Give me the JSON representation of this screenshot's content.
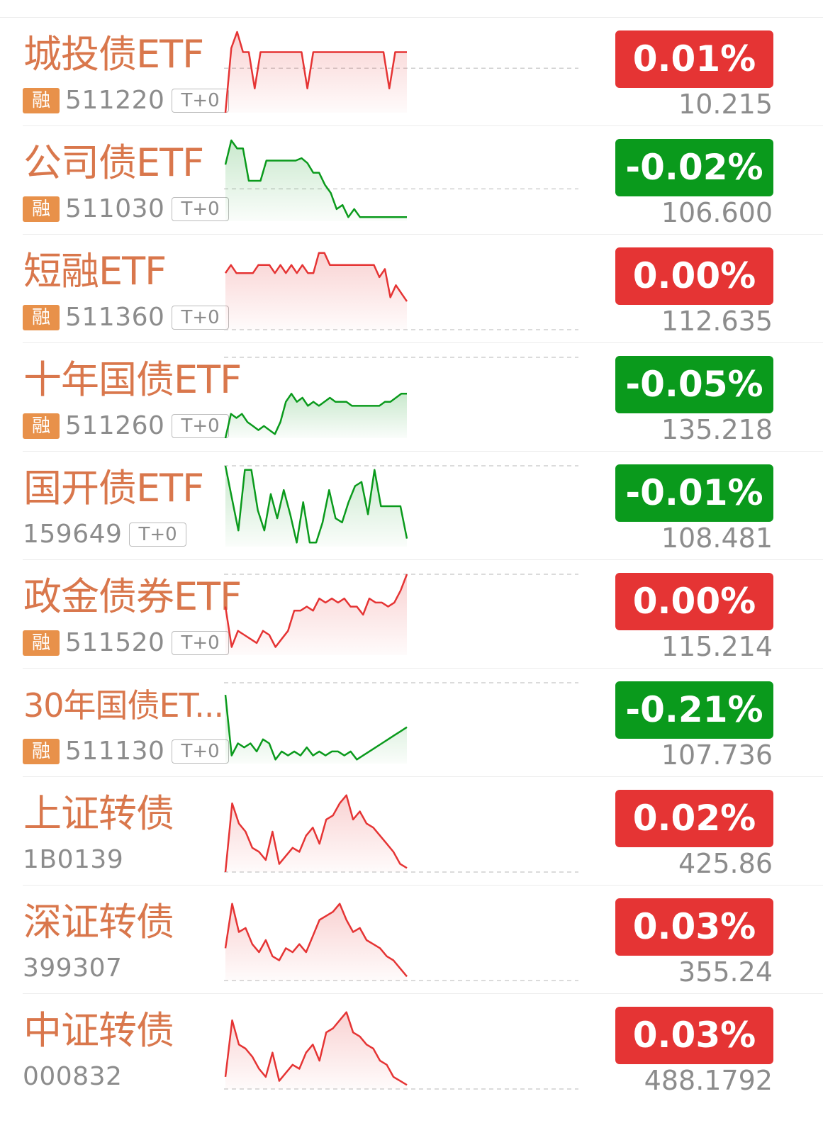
{
  "colors": {
    "up": "#e53434",
    "down": "#0a9a1c",
    "name": "#d9774c",
    "muted": "#8c8c8c",
    "badge_rong": "#e8914a"
  },
  "rows": [
    {
      "name": "城投债ETF",
      "rong": "融",
      "code": "511220",
      "tag": "T+0",
      "change": "0.01%",
      "price": "10.215",
      "trend": "up",
      "ref": 0.55,
      "spark": [
        0,
        0.8,
        1,
        0.75,
        0.75,
        0.3,
        0.75,
        0.75,
        0.75,
        0.75,
        0.75,
        0.75,
        0.75,
        0.75,
        0.3,
        0.75,
        0.75,
        0.75,
        0.75,
        0.75,
        0.75,
        0.75,
        0.75,
        0.75,
        0.75,
        0.75,
        0.75,
        0.75,
        0.3,
        0.75,
        0.75,
        0.75
      ]
    },
    {
      "name": "公司债ETF",
      "rong": "融",
      "code": "511030",
      "tag": "T+0",
      "change": "-0.02%",
      "price": "106.600",
      "trend": "down",
      "ref": 0.4,
      "spark": [
        0.7,
        1,
        0.9,
        0.9,
        0.5,
        0.5,
        0.5,
        0.75,
        0.75,
        0.75,
        0.75,
        0.75,
        0.75,
        0.78,
        0.72,
        0.6,
        0.6,
        0.45,
        0.35,
        0.15,
        0.2,
        0.05,
        0.15,
        0.05,
        0.05,
        0.05,
        0.05,
        0.05,
        0.05,
        0.05,
        0.05,
        0.05
      ]
    },
    {
      "name": "短融ETF",
      "rong": "融",
      "code": "511360",
      "tag": "T+0",
      "change": "0.00%",
      "price": "112.635",
      "trend": "up",
      "ref": 0,
      "spark": [
        0.7,
        0.8,
        0.7,
        0.7,
        0.7,
        0.7,
        0.8,
        0.8,
        0.8,
        0.7,
        0.8,
        0.7,
        0.8,
        0.7,
        0.8,
        0.7,
        0.7,
        0.95,
        0.95,
        0.8,
        0.8,
        0.8,
        0.8,
        0.8,
        0.8,
        0.8,
        0.8,
        0.8,
        0.65,
        0.75,
        0.4,
        0.55,
        0.45,
        0.35
      ]
    },
    {
      "name": "十年国债ETF",
      "rong": "融",
      "code": "511260",
      "tag": "T+0",
      "change": "-0.05%",
      "price": "135.218",
      "trend": "down",
      "ref": 1,
      "spark": [
        0,
        0.3,
        0.25,
        0.3,
        0.2,
        0.15,
        0.1,
        0.15,
        0.1,
        0.05,
        0.2,
        0.45,
        0.55,
        0.45,
        0.5,
        0.4,
        0.45,
        0.4,
        0.45,
        0.5,
        0.45,
        0.45,
        0.45,
        0.4,
        0.4,
        0.4,
        0.4,
        0.4,
        0.4,
        0.45,
        0.45,
        0.5,
        0.55,
        0.55
      ]
    },
    {
      "name": "国开债ETF",
      "rong": "",
      "code": "159649",
      "tag": "T+0",
      "change": "-0.01%",
      "price": "108.481",
      "trend": "down",
      "ref": 1,
      "spark": [
        1,
        0.6,
        0.2,
        0.95,
        0.95,
        0.45,
        0.2,
        0.65,
        0.35,
        0.7,
        0.4,
        0.05,
        0.55,
        0.05,
        0.05,
        0.3,
        0.7,
        0.35,
        0.3,
        0.55,
        0.75,
        0.8,
        0.4,
        0.95,
        0.5,
        0.5,
        0.5,
        0.5,
        0.1
      ]
    },
    {
      "name": "政金债券ETF",
      "rong": "融",
      "code": "511520",
      "tag": "T+0",
      "change": "0.00%",
      "price": "115.214",
      "trend": "up",
      "ref": 1,
      "spark": [
        0.6,
        0.1,
        0.3,
        0.25,
        0.2,
        0.15,
        0.3,
        0.25,
        0.1,
        0.2,
        0.3,
        0.55,
        0.55,
        0.6,
        0.55,
        0.7,
        0.65,
        0.7,
        0.65,
        0.7,
        0.6,
        0.6,
        0.5,
        0.7,
        0.65,
        0.65,
        0.6,
        0.65,
        0.8,
        1
      ]
    },
    {
      "name": "30年国债ET...",
      "rong": "融",
      "code": "511130",
      "tag": "T+0",
      "change": "-0.21%",
      "price": "107.736",
      "trend": "down",
      "ref": 1,
      "spark": [
        0.85,
        0.1,
        0.25,
        0.2,
        0.25,
        0.15,
        0.3,
        0.25,
        0.05,
        0.15,
        0.1,
        0.15,
        0.1,
        0.2,
        0.1,
        0.15,
        0.1,
        0.15,
        0.15,
        0.1,
        0.15,
        0.05,
        0.1,
        0.15,
        0.2,
        0.25,
        0.3,
        0.35,
        0.4,
        0.45
      ]
    },
    {
      "name": "上证转债",
      "rong": "",
      "code": "1B0139",
      "tag": "",
      "change": "0.02%",
      "price": "425.86",
      "trend": "up",
      "ref": 0,
      "spark": [
        0,
        0.85,
        0.6,
        0.5,
        0.3,
        0.25,
        0.15,
        0.5,
        0.1,
        0.2,
        0.3,
        0.25,
        0.45,
        0.55,
        0.35,
        0.65,
        0.7,
        0.85,
        0.95,
        0.65,
        0.75,
        0.6,
        0.55,
        0.45,
        0.35,
        0.25,
        0.1,
        0.05
      ]
    },
    {
      "name": "深证转债",
      "rong": "",
      "code": "399307",
      "tag": "",
      "change": "0.03%",
      "price": "355.24",
      "trend": "up",
      "ref": 0,
      "spark": [
        0.4,
        0.95,
        0.6,
        0.65,
        0.45,
        0.35,
        0.5,
        0.3,
        0.25,
        0.4,
        0.35,
        0.45,
        0.35,
        0.55,
        0.75,
        0.8,
        0.85,
        0.95,
        0.75,
        0.6,
        0.65,
        0.5,
        0.45,
        0.4,
        0.3,
        0.25,
        0.15,
        0.05
      ]
    },
    {
      "name": "中证转债",
      "rong": "",
      "code": "000832",
      "tag": "",
      "change": "0.03%",
      "price": "488.1792",
      "trend": "up",
      "ref": 0,
      "spark": [
        0.15,
        0.85,
        0.55,
        0.5,
        0.4,
        0.25,
        0.15,
        0.45,
        0.1,
        0.2,
        0.3,
        0.25,
        0.45,
        0.55,
        0.35,
        0.7,
        0.75,
        0.85,
        0.95,
        0.7,
        0.65,
        0.55,
        0.5,
        0.35,
        0.3,
        0.15,
        0.1,
        0.05
      ]
    }
  ]
}
